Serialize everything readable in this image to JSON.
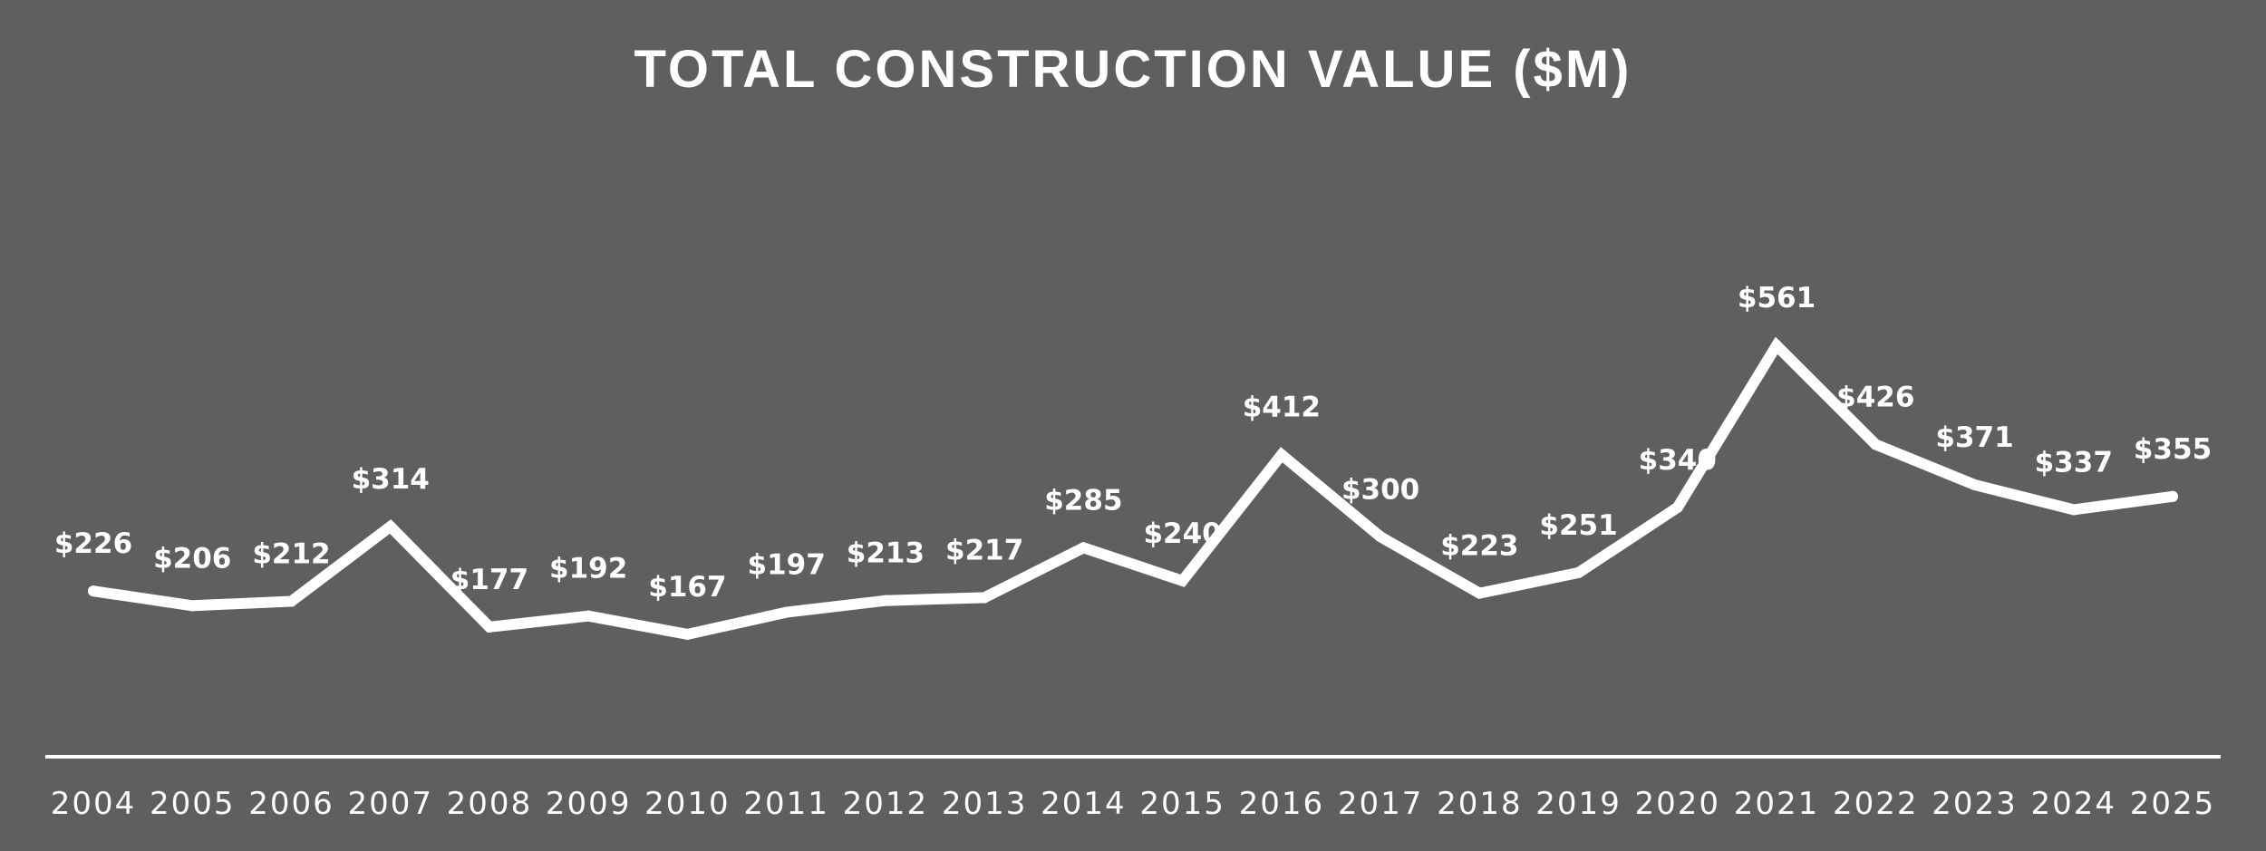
{
  "chart_data": {
    "type": "line",
    "title": "TOTAL CONSTRUCTION VALUE ($M)",
    "xlabel": "",
    "ylabel": "",
    "categories": [
      "2004",
      "2005",
      "2006",
      "2007",
      "2008",
      "2009",
      "2010",
      "2011",
      "2012",
      "2013",
      "2014",
      "2015",
      "2016",
      "2017",
      "2018",
      "2019",
      "2020",
      "2021",
      "2022",
      "2023",
      "2024",
      "2025"
    ],
    "values": [
      226,
      206,
      212,
      314,
      177,
      192,
      167,
      197,
      213,
      217,
      285,
      240,
      412,
      300,
      223,
      251,
      340,
      561,
      426,
      371,
      337,
      355
    ],
    "data_labels": [
      "$226",
      "$206",
      "$212",
      "$314",
      "$177",
      "$192",
      "$167",
      "$197",
      "$213",
      "$217",
      "$285",
      "$240",
      "$412",
      "$300",
      "$223",
      "$251",
      "$340",
      "$561",
      "$426",
      "$371",
      "$337",
      "$355"
    ],
    "ylim": [
      0,
      600
    ],
    "grid": false,
    "legend": "none",
    "colors": {
      "background": "#5f5f5f",
      "line": "#ffffff",
      "text": "#ffffff",
      "drop_line": "#ffffff"
    }
  }
}
